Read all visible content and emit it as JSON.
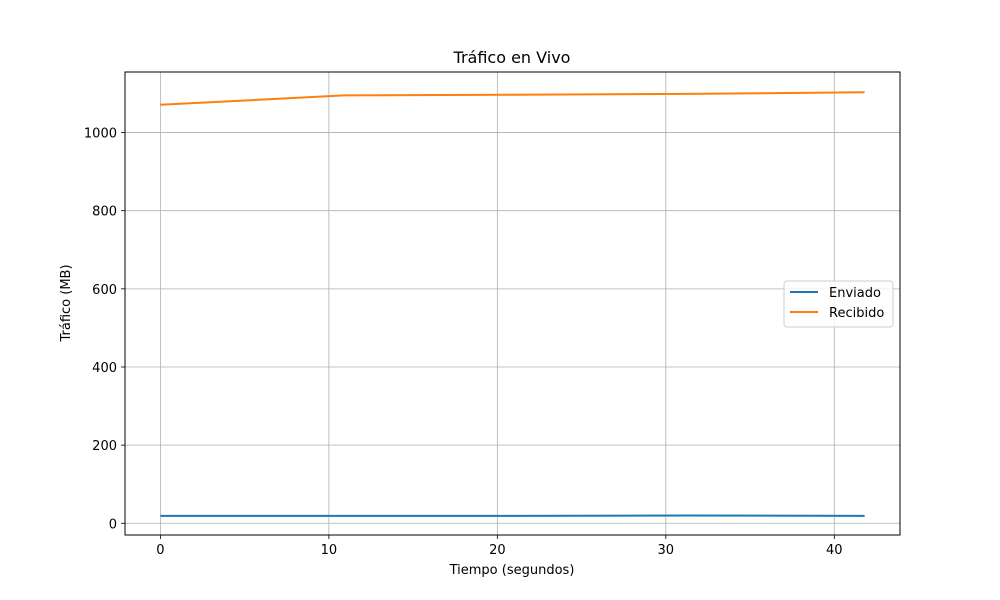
{
  "chart_data": {
    "type": "line",
    "title": "Tráfico en Vivo",
    "xlabel": "Tiempo (segundos)",
    "ylabel": "Tráfico (MB)",
    "xlim": [
      -2.1,
      43.9
    ],
    "ylim": [
      -30,
      1155
    ],
    "xticks": [
      0,
      10,
      20,
      30,
      40
    ],
    "yticks": [
      0,
      200,
      400,
      600,
      800,
      1000
    ],
    "grid": true,
    "legend_position": "center-right",
    "series": [
      {
        "name": "Enviado",
        "color": "#1f77b4",
        "x": [
          0,
          10.9,
          20.9,
          31.2,
          41.8
        ],
        "y": [
          19,
          19,
          19,
          20,
          19
        ]
      },
      {
        "name": "Recibido",
        "color": "#ff7f0e",
        "x": [
          0,
          10.9,
          20.9,
          31.2,
          41.8
        ],
        "y": [
          1071,
          1095,
          1097,
          1099,
          1103
        ]
      }
    ]
  }
}
